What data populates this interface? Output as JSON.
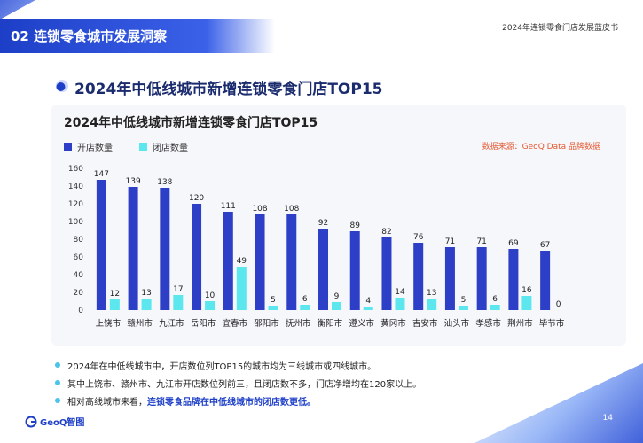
{
  "header": {
    "section_title": "02 连锁零食城市发展洞察",
    "report_title": "2024年连锁零食门店发展蓝皮书"
  },
  "page_heading": "2024年中低线城市新增连锁零食门店TOP15",
  "source_note": "数据来源：GeoQ Data 品牌数据",
  "colors": {
    "open": "#2e3fc7",
    "close": "#5ce6ee",
    "accent": "#1d3fc7"
  },
  "chart_data": {
    "type": "bar",
    "title": "2024年中低线城市新增连锁零食门店TOP15",
    "categories": [
      "上饶市",
      "赣州市",
      "九江市",
      "岳阳市",
      "宜春市",
      "邵阳市",
      "抚州市",
      "衡阳市",
      "遵义市",
      "黄冈市",
      "吉安市",
      "汕头市",
      "孝感市",
      "荆州市",
      "毕节市"
    ],
    "series": [
      {
        "name": "开店数量",
        "color": "#2e3fc7",
        "values": [
          147,
          139,
          138,
          120,
          111,
          108,
          108,
          92,
          89,
          82,
          76,
          71,
          71,
          69,
          67
        ]
      },
      {
        "name": "闭店数量",
        "color": "#5ce6ee",
        "values": [
          12,
          13,
          17,
          10,
          49,
          5,
          6,
          9,
          4,
          14,
          13,
          5,
          6,
          16,
          0
        ]
      }
    ],
    "yticks": [
      "0",
      "20",
      "40",
      "60",
      "80",
      "100",
      "120",
      "140",
      "160"
    ],
    "ylim": [
      0,
      160
    ],
    "legend_position": "top-left",
    "grid": false
  },
  "bullets": [
    {
      "text": "2024年在中低线城市中，开店数位列TOP15的城市均为三线城市或四线城市。",
      "highlight": ""
    },
    {
      "text": "其中上饶市、赣州市、九江市开店数位列前三，且闭店数不多，门店净增均在120家以上。",
      "highlight": ""
    },
    {
      "text": "相对高线城市来看，",
      "highlight": "连锁零食品牌在中低线城市的闭店数更低。"
    }
  ],
  "footer": {
    "logo_text": "GeoQ智图",
    "page_number": "14"
  }
}
